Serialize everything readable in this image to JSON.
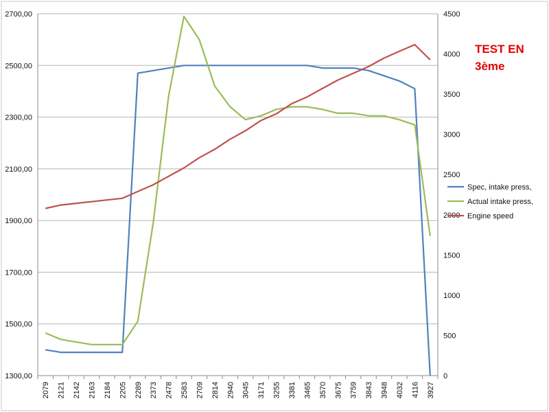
{
  "chart_data": {
    "type": "line",
    "title": "",
    "annotation": [
      "TEST EN",
      "3ème"
    ],
    "categories": [
      "2079",
      "2121",
      "2142",
      "2163",
      "2184",
      "2205",
      "2289",
      "2373",
      "2478",
      "2583",
      "2709",
      "2814",
      "2940",
      "3045",
      "3171",
      "3255",
      "3381",
      "3465",
      "3570",
      "3675",
      "3759",
      "3843",
      "3948",
      "4032",
      "4116",
      "3927"
    ],
    "y_left": {
      "ylim": [
        1300,
        2700
      ],
      "ticks": [
        "1300,00",
        "1500,00",
        "1700,00",
        "1900,00",
        "2100,00",
        "2300,00",
        "2500,00",
        "2700,00"
      ]
    },
    "y_right": {
      "ylim": [
        0,
        4500
      ],
      "ticks": [
        "0",
        "500",
        "1000",
        "1500",
        "2000",
        "2500",
        "3000",
        "3500",
        "4000",
        "4500"
      ]
    },
    "series": [
      {
        "name": "Spec, intake press,",
        "axis": "left",
        "color": "#4F81BD",
        "values": [
          1400,
          1390,
          1390,
          1390,
          1390,
          1390,
          2470,
          2480,
          2490,
          2500,
          2500,
          2500,
          2500,
          2500,
          2500,
          2500,
          2500,
          2500,
          2490,
          2490,
          2490,
          2480,
          2460,
          2440,
          2410,
          1300
        ]
      },
      {
        "name": "Actual intake press,",
        "axis": "left",
        "color": "#9BBB59",
        "values": [
          1465,
          1440,
          1430,
          1420,
          1420,
          1420,
          1510,
          1890,
          2380,
          2690,
          2600,
          2420,
          2340,
          2290,
          2305,
          2330,
          2340,
          2340,
          2330,
          2315,
          2315,
          2305,
          2305,
          2290,
          2270,
          1840
        ]
      },
      {
        "name": "Engine speed",
        "axis": "right",
        "color": "#C0504D",
        "values": [
          2079,
          2121,
          2142,
          2163,
          2184,
          2205,
          2289,
          2373,
          2478,
          2583,
          2709,
          2814,
          2940,
          3045,
          3171,
          3255,
          3381,
          3465,
          3570,
          3675,
          3759,
          3843,
          3948,
          4032,
          4116,
          3927
        ]
      }
    ],
    "grid": true,
    "legend_position": "right"
  },
  "colors": {
    "grid": "#b5b5b5",
    "annotation": "#e00000"
  }
}
